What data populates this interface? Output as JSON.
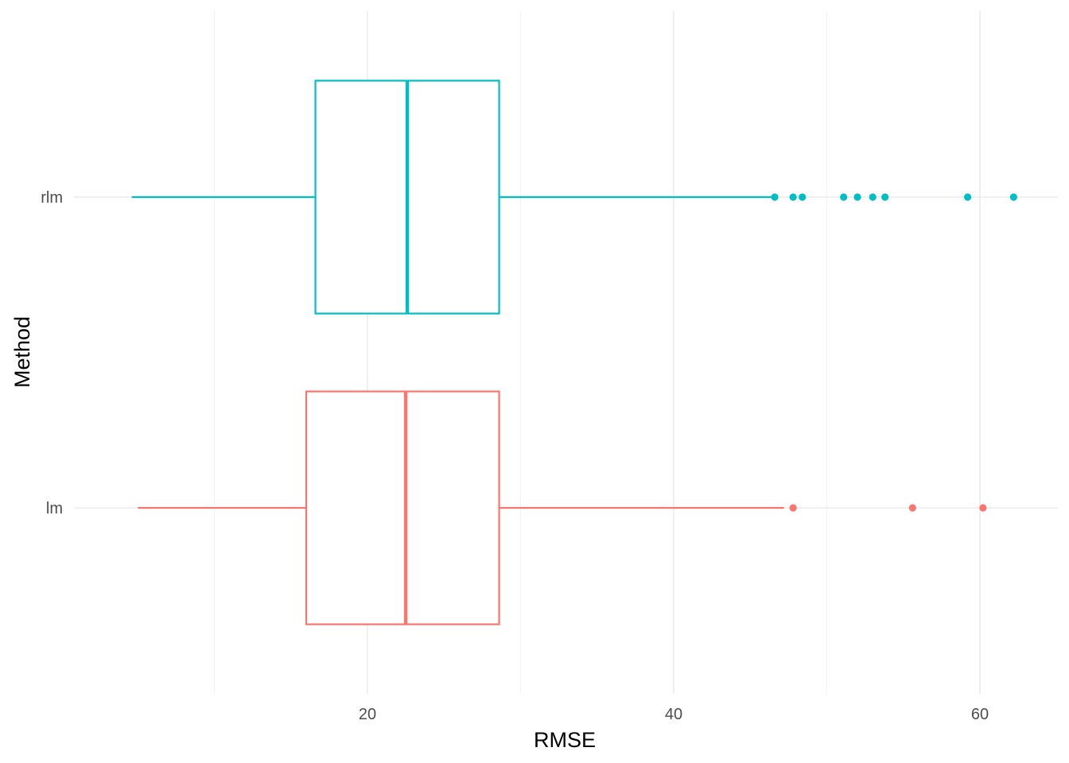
{
  "chart_data": {
    "type": "boxplot",
    "orientation": "horizontal",
    "title": "",
    "xlabel": "RMSE",
    "ylabel": "Method",
    "xlim": [
      0,
      65
    ],
    "x_major_ticks": [
      20,
      40,
      60
    ],
    "x_minor_ticks": [
      10,
      30,
      50
    ],
    "x_tick_labels": [
      "20",
      "40",
      "60"
    ],
    "grid": true,
    "legend": "none",
    "categories": [
      "lm",
      "rlm"
    ],
    "series": [
      {
        "category": "lm",
        "color": "#F8766D",
        "whisker_low": 5.0,
        "q1": 16.0,
        "median": 22.5,
        "q3": 28.6,
        "whisker_high": 47.2,
        "outliers": [
          47.8,
          55.6,
          60.2
        ]
      },
      {
        "category": "rlm",
        "color": "#00BFC4",
        "whisker_low": 4.6,
        "q1": 16.6,
        "median": 22.6,
        "q3": 28.6,
        "whisker_high": 46.5,
        "outliers": [
          46.6,
          47.8,
          48.4,
          51.1,
          52.0,
          53.0,
          53.8,
          59.2,
          62.2
        ]
      }
    ]
  }
}
